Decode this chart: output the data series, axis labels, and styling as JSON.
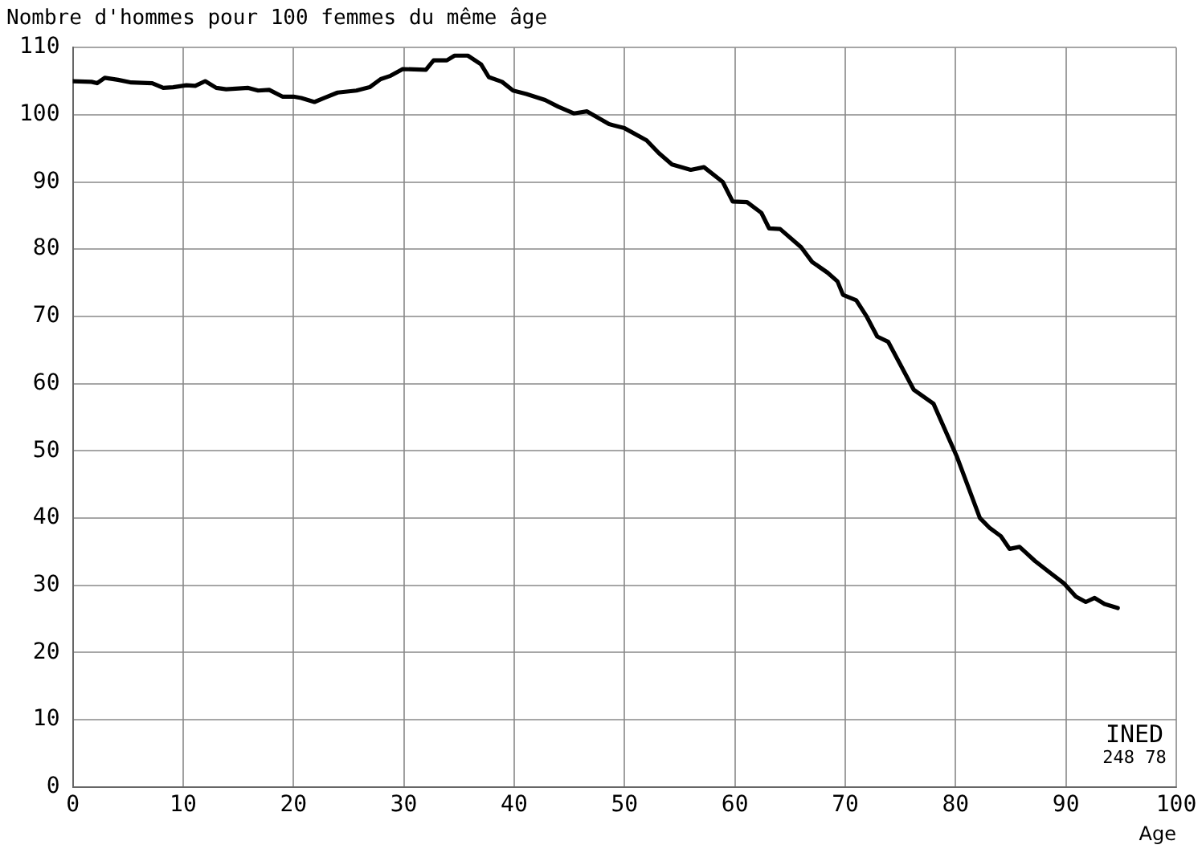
{
  "chart_data": {
    "type": "line",
    "title": "Nombre d'hommes pour 100 femmes du même âge",
    "xlabel": "Age",
    "annotations": [
      "INED",
      "248 78"
    ],
    "x": [
      0,
      1.7,
      2.2,
      2.9,
      4.1,
      5.3,
      7.2,
      8.2,
      9.1,
      10.3,
      11.1,
      12,
      13,
      13.9,
      15.9,
      16.8,
      17.8,
      19,
      20,
      20.7,
      21.9,
      22.8,
      24,
      25.7,
      26.9,
      27.9,
      28.8,
      29.9,
      32,
      32.7,
      33.9,
      34.6,
      35.8,
      37,
      37.7,
      38.9,
      39.9,
      41.1,
      42.8,
      44,
      45.4,
      46.6,
      48.6,
      50,
      52,
      53.1,
      54.3,
      56,
      57.2,
      58.9,
      59.8,
      61.1,
      62.4,
      63.1,
      64.1,
      66,
      67,
      68.4,
      69.3,
      69.8,
      71,
      71.9,
      72.9,
      73.9,
      76.2,
      78,
      80.1,
      82.2,
      83.1,
      84.1,
      84.9,
      85.8,
      87.2,
      88.6,
      89.8,
      90.9,
      91.8,
      92.6,
      93.5,
      94.7
    ],
    "series": [
      {
        "color": "#000000",
        "values": [
          105,
          104.9,
          104.7,
          105.5,
          105.2,
          104.8,
          104.7,
          104,
          104.1,
          104.4,
          104.3,
          105,
          104,
          103.8,
          104,
          103.6,
          103.7,
          102.7,
          102.7,
          102.5,
          101.9,
          102.5,
          103.3,
          103.6,
          104.1,
          105.3,
          105.8,
          106.8,
          106.7,
          108.1,
          108.1,
          108.8,
          108.8,
          107.5,
          105.6,
          104.9,
          103.6,
          103.1,
          102.2,
          101.2,
          100.2,
          100.5,
          98.6,
          98,
          96.2,
          94.3,
          92.6,
          91.8,
          92.2,
          90,
          87.1,
          87,
          85.4,
          83.1,
          83,
          80.3,
          78.1,
          76.5,
          75.2,
          73.2,
          72.4,
          70.1,
          67,
          66.2,
          59.1,
          57,
          49.2,
          40,
          38.5,
          37.3,
          35.4,
          35.7,
          33.6,
          31.8,
          30.3,
          28.3,
          27.5,
          28.1,
          27.2,
          26.6
        ]
      }
    ],
    "xlim": [
      0,
      100
    ],
    "xticks": [
      0,
      10,
      20,
      30,
      40,
      50,
      60,
      70,
      80,
      90,
      100
    ],
    "ylim": [
      0,
      110
    ],
    "yticks": [
      0,
      10,
      20,
      30,
      40,
      50,
      60,
      70,
      80,
      90,
      100,
      110
    ],
    "grid": true,
    "legend": false,
    "marker": "none",
    "line_style": "solid"
  }
}
